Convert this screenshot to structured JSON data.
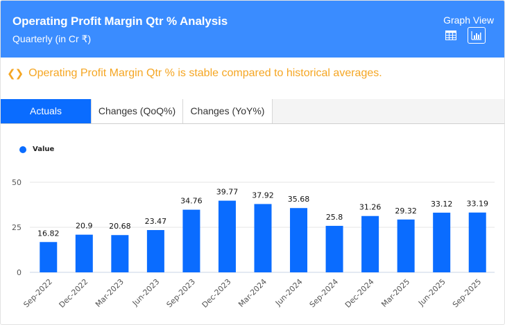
{
  "header": {
    "title": "Operating Profit Margin Qtr % Analysis",
    "subtitle": "Quarterly (in Cr ₹)",
    "view_label": "Graph View",
    "icons": [
      "table-view-icon",
      "bar-chart-view-icon"
    ]
  },
  "insight": {
    "icon": "code-chevrons-icon",
    "text": "Operating Profit Margin Qtr % is stable compared to historical averages.",
    "color": "#f5a623"
  },
  "tabs": [
    {
      "label": "Actuals",
      "active": true
    },
    {
      "label": "Changes (QoQ%)",
      "active": false
    },
    {
      "label": "Changes (YoY%)",
      "active": false
    }
  ],
  "colors": {
    "header_bg": "#3a8cff",
    "bar": "#0a6cff",
    "active_tab": "#0a6cff"
  },
  "chart_data": {
    "type": "bar",
    "title": "Operating Profit Margin Qtr % Analysis",
    "xlabel": "",
    "ylabel": "",
    "legend": {
      "entries": [
        "Value"
      ],
      "placement": "top-left"
    },
    "grid": true,
    "ylim": [
      0,
      50
    ],
    "yticks": [
      0,
      25,
      50
    ],
    "categories": [
      "Sep-2022",
      "Dec-2022",
      "Mar-2023",
      "Jun-2023",
      "Sep-2023",
      "Dec-2023",
      "Mar-2024",
      "Jun-2024",
      "Sep-2024",
      "Dec-2024",
      "Mar-2025",
      "Jun-2025",
      "Sep-2025"
    ],
    "series": [
      {
        "name": "Value",
        "values": [
          16.82,
          20.9,
          20.68,
          23.47,
          34.76,
          39.77,
          37.92,
          35.68,
          25.8,
          31.26,
          29.32,
          33.12,
          33.19
        ]
      }
    ],
    "data_labels": [
      "16.82",
      "20.9",
      "20.68",
      "23.47",
      "34.76",
      "39.77",
      "37.92",
      "35.68",
      "25.8",
      "31.26",
      "29.32",
      "33.12",
      "33.19"
    ]
  }
}
